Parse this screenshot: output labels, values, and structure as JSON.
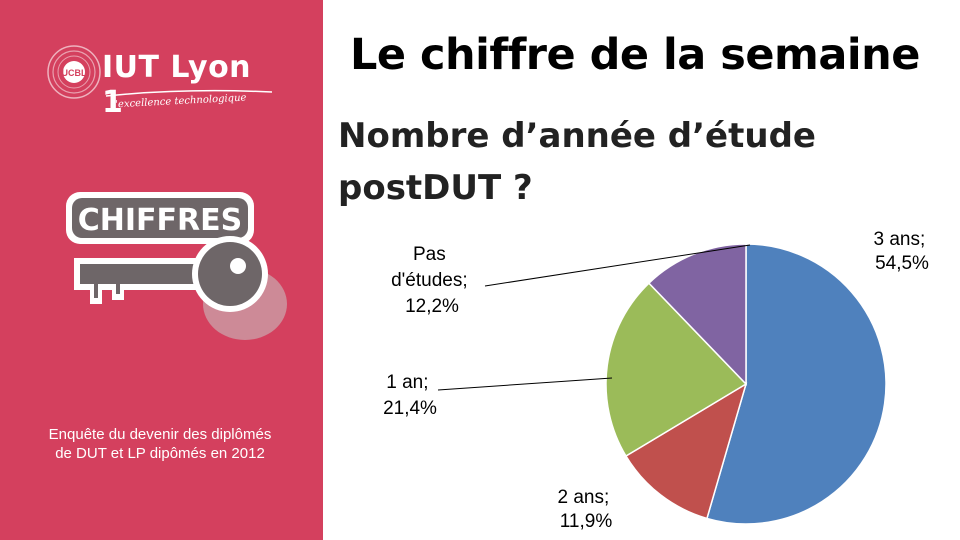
{
  "sidebar": {
    "logo": {
      "name": "IUT Lyon 1",
      "tagline": "l'excellence technologique",
      "badge": "UCBL"
    },
    "key_badge": "CHIFFRES",
    "note": "Enquête du devenir des diplômés de DUT et LP dipômés en 2012"
  },
  "header": {
    "title": "Le chiffre de la semaine",
    "question": "Nombre d’année d’étude postDUT ?"
  },
  "colors": {
    "sidebar": "#d4405e",
    "slice_3ans": "#4f81bd",
    "slice_2ans": "#c0504d",
    "slice_1an": "#9bbb59",
    "slice_pas": "#8064a2"
  },
  "chart_data": {
    "type": "pie",
    "start": "12 o'clock, clockwise",
    "slices": [
      {
        "label": "3 ans",
        "value": 54.5,
        "display": "54,5%"
      },
      {
        "label": "2 ans",
        "value": 11.9,
        "display": "11,9%"
      },
      {
        "label": "1 an",
        "value": 21.4,
        "display": "21,4%"
      },
      {
        "label": "Pas d'études",
        "value": 12.2,
        "display": "12,2%"
      }
    ],
    "labels": {
      "slice_3ans": {
        "line1": "3 ans;",
        "line2": "54,5%"
      },
      "slice_2ans": {
        "line1": "2 ans;",
        "line2": "11,9%"
      },
      "slice_1an": {
        "line1": "1 an;",
        "line2": "21,4%"
      },
      "slice_pas": {
        "line1": "Pas",
        "line2": "d'études;",
        "line3": "12,2%"
      }
    }
  }
}
